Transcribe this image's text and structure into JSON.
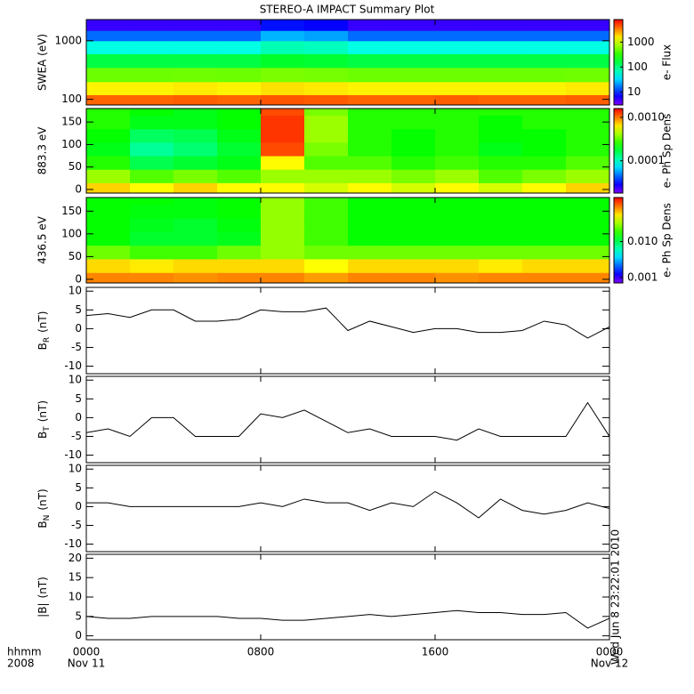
{
  "title": "STEREO-A IMPACT Summary Plot",
  "timestamp": "Wed Jun 8 23:22:01 2010",
  "x_axis": {
    "xlim": [
      0,
      24
    ],
    "xticks": [
      {
        "value": 0,
        "label": "0000"
      },
      {
        "value": 8,
        "label": "0800"
      },
      {
        "value": 16,
        "label": "1600"
      },
      {
        "value": 24,
        "label": "0000"
      }
    ],
    "dates": [
      {
        "value": 0,
        "label": "Nov 11"
      },
      {
        "value": 24,
        "label": "Nov 12"
      }
    ],
    "hhmm": "hhmm",
    "year": "2008"
  },
  "chart_data": [
    {
      "type": "heatmap",
      "ylabel": "SWEA (eV)",
      "log": true,
      "ylim": [
        80,
        2300
      ],
      "yticks": [
        100,
        1000
      ],
      "zlabel": "e- Flux",
      "zlim": [
        3,
        8000
      ],
      "zticks": [
        10,
        100,
        1000
      ],
      "x_bins": [
        0,
        2,
        4,
        6,
        8,
        10,
        12,
        14,
        16,
        18,
        20,
        22,
        24
      ],
      "y_bins": [
        80,
        120,
        200,
        350,
        600,
        1000,
        1500,
        2300
      ],
      "z": [
        [
          4000,
          4000,
          4200,
          4000,
          4500,
          4300,
          4000,
          4000,
          4200,
          4000,
          4000,
          4200
        ],
        [
          1500,
          1500,
          1600,
          1500,
          1700,
          1600,
          1500,
          1500,
          1500,
          1500,
          1500,
          1600
        ],
        [
          500,
          500,
          520,
          500,
          560,
          540,
          500,
          500,
          500,
          500,
          500,
          520
        ],
        [
          150,
          150,
          150,
          150,
          180,
          170,
          150,
          150,
          150,
          150,
          150,
          150
        ],
        [
          50,
          50,
          50,
          50,
          70,
          65,
          50,
          50,
          50,
          50,
          50,
          50
        ],
        [
          15,
          15,
          15,
          15,
          25,
          22,
          15,
          15,
          15,
          15,
          15,
          15
        ],
        [
          5,
          5,
          5,
          5,
          8,
          7,
          5,
          5,
          5,
          5,
          5,
          5
        ]
      ]
    },
    {
      "type": "heatmap",
      "ylabel": "883.3 eV",
      "log": false,
      "ylim": [
        -8,
        180
      ],
      "yticks": [
        0,
        50,
        100,
        150
      ],
      "zlabel": "e- Ph Sp Dens",
      "zlim": [
        1.8e-05,
        0.0016
      ],
      "zticks": [
        0.0001,
        {
          "value": 0.001,
          "label": "0.0010"
        }
      ],
      "x_bins": [
        0,
        2,
        4,
        6,
        8,
        10,
        12,
        14,
        16,
        18,
        20,
        22,
        24
      ],
      "y_bins": [
        -15,
        15,
        45,
        75,
        105,
        135,
        165,
        195
      ],
      "z": [
        [
          0.0007,
          0.0006,
          0.0007,
          0.0006,
          0.0006,
          0.0005,
          0.0006,
          0.0005,
          0.0006,
          0.0005,
          0.0006,
          0.0007
        ],
        [
          0.0004,
          0.0003,
          0.00035,
          0.0003,
          0.0004,
          0.0004,
          0.0004,
          0.00035,
          0.0004,
          0.0003,
          0.00035,
          0.0004
        ],
        [
          0.00025,
          0.00016,
          0.00018,
          0.0002,
          0.0006,
          0.0003,
          0.0003,
          0.00025,
          0.00028,
          0.00025,
          0.00025,
          0.0003
        ],
        [
          0.0002,
          0.00012,
          0.00014,
          0.00018,
          0.0012,
          0.00035,
          0.00025,
          0.00022,
          0.00025,
          0.0002,
          0.00022,
          0.00025
        ],
        [
          0.00022,
          0.00015,
          0.00016,
          0.0002,
          0.0013,
          0.0004,
          0.00025,
          0.00022,
          0.00025,
          0.00022,
          0.00022,
          0.00025
        ],
        [
          0.00025,
          0.0002,
          0.0002,
          0.00022,
          0.0013,
          0.0004,
          0.00025,
          0.00025,
          0.00025,
          0.00022,
          0.00025,
          0.00025
        ],
        [
          0.00025,
          0.00022,
          0.0002,
          0.00022,
          0.0012,
          0.00035,
          0.00025,
          0.00025,
          0.00025,
          0.00025,
          0.00025,
          0.00025
        ]
      ]
    },
    {
      "type": "heatmap",
      "ylabel": "436.5 eV",
      "log": false,
      "ylim": [
        -8,
        180
      ],
      "yticks": [
        0,
        50,
        100,
        150
      ],
      "zlabel": "e- Ph Sp Dens",
      "zlim": [
        0.0007,
        0.17
      ],
      "zticks": [
        0.001,
        {
          "value": 0.01,
          "label": "0.010"
        }
      ],
      "x_bins": [
        0,
        2,
        4,
        6,
        8,
        10,
        12,
        14,
        16,
        18,
        20,
        22,
        24
      ],
      "y_bins": [
        -15,
        15,
        45,
        75,
        105,
        135,
        165,
        195
      ],
      "z": [
        [
          0.09,
          0.09,
          0.085,
          0.09,
          0.09,
          0.08,
          0.09,
          0.09,
          0.085,
          0.09,
          0.09,
          0.09
        ],
        [
          0.06,
          0.055,
          0.06,
          0.06,
          0.06,
          0.05,
          0.06,
          0.06,
          0.06,
          0.055,
          0.06,
          0.06
        ],
        [
          0.025,
          0.02,
          0.02,
          0.025,
          0.03,
          0.025,
          0.025,
          0.025,
          0.025,
          0.025,
          0.025,
          0.025
        ],
        [
          0.015,
          0.012,
          0.012,
          0.013,
          0.03,
          0.02,
          0.015,
          0.015,
          0.015,
          0.015,
          0.015,
          0.015
        ],
        [
          0.015,
          0.013,
          0.012,
          0.014,
          0.03,
          0.02,
          0.015,
          0.015,
          0.015,
          0.015,
          0.015,
          0.015
        ],
        [
          0.015,
          0.014,
          0.014,
          0.015,
          0.03,
          0.02,
          0.015,
          0.015,
          0.015,
          0.015,
          0.015,
          0.015
        ],
        [
          0.015,
          0.015,
          0.014,
          0.015,
          0.03,
          0.02,
          0.015,
          0.015,
          0.015,
          0.015,
          0.015,
          0.015
        ]
      ]
    },
    {
      "type": "line",
      "ylabel": {
        "main": "B",
        "sub": "R",
        "unit": "(nT)"
      },
      "ylim": [
        -12,
        11
      ],
      "yticks": [
        -10,
        -5,
        0,
        5,
        10
      ],
      "color": "#000000",
      "x": [
        0,
        1,
        2,
        3,
        4,
        5,
        6,
        7,
        8,
        9,
        10,
        11,
        12,
        13,
        14,
        15,
        16,
        17,
        18,
        19,
        20,
        21,
        22,
        23,
        24
      ],
      "values": [
        3.5,
        4,
        3,
        5,
        5,
        2,
        2,
        2.5,
        5,
        4.5,
        4.5,
        5.5,
        -0.5,
        2,
        0.5,
        -1,
        0,
        0,
        -1,
        -1,
        -0.5,
        2,
        1,
        -2.5,
        0.5
      ]
    },
    {
      "type": "line",
      "ylabel": {
        "main": "B",
        "sub": "T",
        "unit": "(nT)"
      },
      "ylim": [
        -12,
        11
      ],
      "yticks": [
        -10,
        -5,
        0,
        5,
        10
      ],
      "color": "#000000",
      "x": [
        0,
        1,
        2,
        3,
        4,
        5,
        6,
        7,
        8,
        9,
        10,
        11,
        12,
        13,
        14,
        15,
        16,
        17,
        18,
        19,
        20,
        21,
        22,
        23,
        24
      ],
      "values": [
        -4,
        -3,
        -5,
        0,
        0,
        -5,
        -5,
        -5,
        1,
        0,
        2,
        -1,
        -4,
        -3,
        -5,
        -5,
        -5,
        -6,
        -3,
        -5,
        -5,
        -5,
        -5,
        4,
        -5
      ]
    },
    {
      "type": "line",
      "ylabel": {
        "main": "B",
        "sub": "N",
        "unit": "(nT)"
      },
      "ylim": [
        -12,
        11
      ],
      "yticks": [
        -10,
        -5,
        0,
        5,
        10
      ],
      "color": "#000000",
      "x": [
        0,
        1,
        2,
        3,
        4,
        5,
        6,
        7,
        8,
        9,
        10,
        11,
        12,
        13,
        14,
        15,
        16,
        17,
        18,
        19,
        20,
        21,
        22,
        23,
        24
      ],
      "values": [
        1,
        1,
        0,
        0,
        0,
        0,
        0,
        0,
        1,
        0,
        2,
        1,
        1,
        -1,
        1,
        0,
        4,
        1,
        -3,
        2,
        -1,
        -2,
        -1,
        1,
        -0.5
      ]
    },
    {
      "type": "line",
      "ylabel": {
        "main": "|B|",
        "unit": "(nT)"
      },
      "ylim": [
        -1,
        21
      ],
      "yticks": [
        0,
        5,
        10,
        15,
        20
      ],
      "color": "#000000",
      "x": [
        0,
        1,
        2,
        3,
        4,
        5,
        6,
        7,
        8,
        9,
        10,
        11,
        12,
        13,
        14,
        15,
        16,
        17,
        18,
        19,
        20,
        21,
        22,
        23,
        24
      ],
      "values": [
        5,
        4.5,
        4.5,
        5,
        5,
        5,
        5,
        4.5,
        4.5,
        4,
        4,
        4.5,
        5,
        5.5,
        5,
        5.5,
        6,
        6.5,
        6,
        6,
        5.5,
        5.5,
        6,
        2,
        4.5
      ]
    }
  ]
}
